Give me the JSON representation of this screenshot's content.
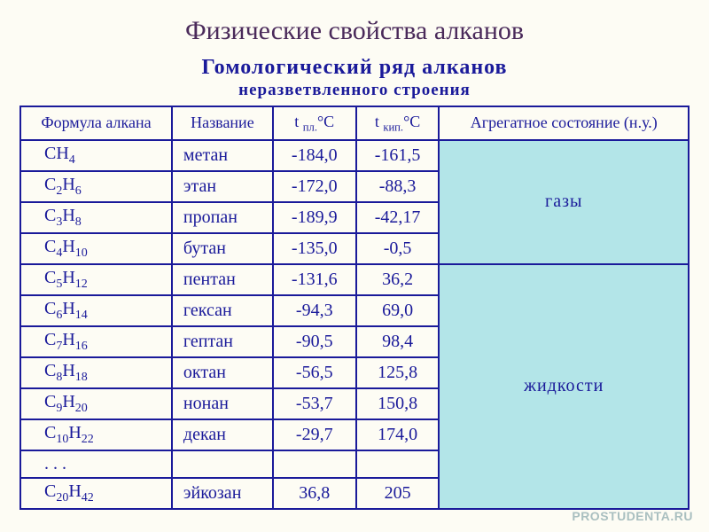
{
  "title": "Физические свойства алканов",
  "subtitle_line1": "Гомологический ряд алканов",
  "subtitle_line2": "неразветвленного строения",
  "headers": {
    "formula": "Формула алкана",
    "name": "Название",
    "t_melt": "t ",
    "t_melt_sub": "пл.",
    "t_melt_unit": "°C",
    "t_boil": "t ",
    "t_boil_sub": "кип.",
    "t_boil_unit": "°C",
    "state": "Агрегатное состояние (н.у.)"
  },
  "state_labels": {
    "gas": "газы",
    "liquid": "жидкости"
  },
  "rows": [
    {
      "formula_html": "CH<sub>4</sub>",
      "name": "метан",
      "tm": "-184,0",
      "tb": "-161,5"
    },
    {
      "formula_html": "C<sub>2</sub>H<sub>6</sub>",
      "name": "этан",
      "tm": "-172,0",
      "tb": "-88,3"
    },
    {
      "formula_html": "C<sub>3</sub>H<sub>8</sub>",
      "name": "пропан",
      "tm": "-189,9",
      "tb": "-42,17"
    },
    {
      "formula_html": "C<sub>4</sub>H<sub>10</sub>",
      "name": "бутан",
      "tm": "-135,0",
      "tb": "-0,5"
    },
    {
      "formula_html": "C<sub>5</sub>H<sub>12</sub>",
      "name": "пентан",
      "tm": "-131,6",
      "tb": "36,2"
    },
    {
      "formula_html": "C<sub>6</sub>H<sub>14</sub>",
      "name": "гексан",
      "tm": "-94,3",
      "tb": "69,0"
    },
    {
      "formula_html": "C<sub>7</sub>H<sub>16</sub>",
      "name": "гептан",
      "tm": "-90,5",
      "tb": "98,4"
    },
    {
      "formula_html": "C<sub>8</sub>H<sub>18</sub>",
      "name": "октан",
      "tm": "-56,5",
      "tb": "125,8"
    },
    {
      "formula_html": "C<sub>9</sub>H<sub>20</sub>",
      "name": "нонан",
      "tm": "-53,7",
      "tb": "150,8"
    },
    {
      "formula_html": "C<sub>10</sub>H<sub>22</sub>",
      "name": "декан",
      "tm": "-29,7",
      "tb": "174,0"
    },
    {
      "formula_html": ". . .",
      "name": "",
      "tm": "",
      "tb": ""
    },
    {
      "formula_html": "C<sub>20</sub>H<sub>42</sub>",
      "name": "эйкозан",
      "tm": "36,8",
      "tb": "205"
    }
  ],
  "watermark": "PROSTUDENTA.RU",
  "styling": {
    "page_bg": "#fdfcf4",
    "title_color": "#4a2a5a",
    "table_border_color": "#1a1a9a",
    "text_color": "#1a1a9a",
    "state_cell_bg": "#b3e5e8",
    "title_fontsize": 30,
    "subtitle_fontsize": 24,
    "cell_fontsize": 20,
    "font_family": "Times New Roman"
  }
}
